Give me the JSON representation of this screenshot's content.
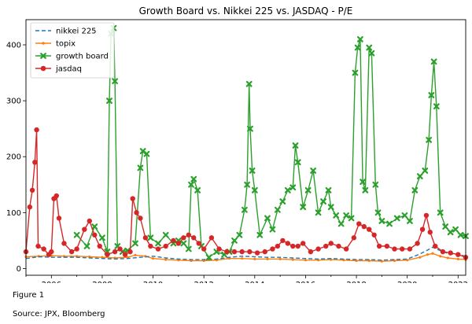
{
  "caption": {
    "figure_label": "Figure 1",
    "source": "Source: JPX, Bloomberg"
  },
  "chart_data": {
    "type": "line",
    "title": "Growth Board vs. Nikkei 225 vs. JASDAQ - P/E",
    "xlabel": "",
    "ylabel": "",
    "xlim": [
      2005.0,
      2022.3
    ],
    "ylim": [
      -12,
      445
    ],
    "x_ticks": [
      2006,
      2008,
      2010,
      2012,
      2014,
      2016,
      2018,
      2020,
      2022
    ],
    "y_ticks": [
      0,
      100,
      200,
      300,
      400
    ],
    "grid": false,
    "legend_position": "top-left",
    "series": [
      {
        "name": "nikkei 225",
        "color": "#1f77b4",
        "style": "dashed",
        "marker": "none",
        "points": [
          [
            2005.0,
            18
          ],
          [
            2005.5,
            21
          ],
          [
            2006.0,
            20
          ],
          [
            2006.5,
            20
          ],
          [
            2007.0,
            20
          ],
          [
            2007.5,
            19
          ],
          [
            2008.0,
            18
          ],
          [
            2008.5,
            17
          ],
          [
            2009.0,
            18
          ],
          [
            2009.5,
            20
          ],
          [
            2010.0,
            22
          ],
          [
            2010.5,
            19
          ],
          [
            2011.0,
            17
          ],
          [
            2011.5,
            16
          ],
          [
            2012.0,
            16
          ],
          [
            2012.5,
            17
          ],
          [
            2013.0,
            20
          ],
          [
            2013.5,
            22
          ],
          [
            2014.0,
            21
          ],
          [
            2014.5,
            20
          ],
          [
            2015.0,
            20
          ],
          [
            2015.5,
            19
          ],
          [
            2016.0,
            18
          ],
          [
            2016.5,
            17
          ],
          [
            2017.0,
            18
          ],
          [
            2017.5,
            17
          ],
          [
            2018.0,
            16
          ],
          [
            2018.5,
            16
          ],
          [
            2019.0,
            15
          ],
          [
            2019.5,
            16
          ],
          [
            2020.0,
            17
          ],
          [
            2020.5,
            26
          ],
          [
            2020.8,
            33
          ],
          [
            2021.0,
            38
          ],
          [
            2021.3,
            32
          ],
          [
            2021.6,
            27
          ],
          [
            2022.0,
            25
          ],
          [
            2022.3,
            22
          ]
        ]
      },
      {
        "name": "topix",
        "color": "#ff7f0e",
        "style": "solid",
        "marker": "dot",
        "points": [
          [
            2005.0,
            21
          ],
          [
            2005.5,
            22
          ],
          [
            2006.0,
            23
          ],
          [
            2006.5,
            22
          ],
          [
            2007.0,
            22
          ],
          [
            2007.5,
            21
          ],
          [
            2008.0,
            20
          ],
          [
            2008.5,
            19
          ],
          [
            2009.0,
            20
          ],
          [
            2009.3,
            24
          ],
          [
            2009.7,
            22
          ],
          [
            2010.0,
            18
          ],
          [
            2010.5,
            16
          ],
          [
            2011.0,
            15
          ],
          [
            2011.5,
            14
          ],
          [
            2012.0,
            14
          ],
          [
            2012.5,
            15
          ],
          [
            2013.0,
            18
          ],
          [
            2013.5,
            18
          ],
          [
            2014.0,
            17
          ],
          [
            2014.5,
            17
          ],
          [
            2015.0,
            17
          ],
          [
            2015.5,
            16
          ],
          [
            2016.0,
            15
          ],
          [
            2016.5,
            15
          ],
          [
            2017.0,
            16
          ],
          [
            2017.5,
            15
          ],
          [
            2018.0,
            14
          ],
          [
            2018.5,
            14
          ],
          [
            2019.0,
            13
          ],
          [
            2019.5,
            14
          ],
          [
            2020.0,
            15
          ],
          [
            2020.5,
            20
          ],
          [
            2020.8,
            25
          ],
          [
            2021.0,
            27
          ],
          [
            2021.3,
            22
          ],
          [
            2021.6,
            19
          ],
          [
            2022.0,
            17
          ],
          [
            2022.3,
            16
          ]
        ]
      },
      {
        "name": "growth board",
        "color": "#2ca02c",
        "style": "solid",
        "marker": "x",
        "points": [
          [
            2007.0,
            60
          ],
          [
            2007.4,
            40
          ],
          [
            2007.7,
            75
          ],
          [
            2008.0,
            55
          ],
          [
            2008.2,
            30
          ],
          [
            2008.28,
            300
          ],
          [
            2008.35,
            420
          ],
          [
            2008.45,
            430
          ],
          [
            2008.5,
            335
          ],
          [
            2008.6,
            40
          ],
          [
            2008.8,
            30
          ],
          [
            2009.0,
            32
          ],
          [
            2009.3,
            45
          ],
          [
            2009.5,
            180
          ],
          [
            2009.6,
            210
          ],
          [
            2009.75,
            205
          ],
          [
            2009.9,
            55
          ],
          [
            2010.2,
            45
          ],
          [
            2010.5,
            60
          ],
          [
            2010.8,
            45
          ],
          [
            2011.0,
            50
          ],
          [
            2011.2,
            45
          ],
          [
            2011.4,
            35
          ],
          [
            2011.5,
            150
          ],
          [
            2011.6,
            160
          ],
          [
            2011.75,
            140
          ],
          [
            2011.9,
            40
          ],
          [
            2012.2,
            20
          ],
          [
            2012.5,
            30
          ],
          [
            2012.8,
            25
          ],
          [
            2013.0,
            30
          ],
          [
            2013.2,
            50
          ],
          [
            2013.4,
            60
          ],
          [
            2013.6,
            105
          ],
          [
            2013.7,
            150
          ],
          [
            2013.78,
            330
          ],
          [
            2013.82,
            250
          ],
          [
            2013.9,
            175
          ],
          [
            2014.0,
            140
          ],
          [
            2014.2,
            60
          ],
          [
            2014.5,
            90
          ],
          [
            2014.7,
            70
          ],
          [
            2014.9,
            105
          ],
          [
            2015.1,
            120
          ],
          [
            2015.3,
            140
          ],
          [
            2015.5,
            145
          ],
          [
            2015.6,
            220
          ],
          [
            2015.7,
            190
          ],
          [
            2015.9,
            110
          ],
          [
            2016.1,
            140
          ],
          [
            2016.3,
            175
          ],
          [
            2016.5,
            100
          ],
          [
            2016.7,
            120
          ],
          [
            2016.9,
            140
          ],
          [
            2017.0,
            110
          ],
          [
            2017.2,
            95
          ],
          [
            2017.4,
            80
          ],
          [
            2017.6,
            95
          ],
          [
            2017.8,
            90
          ],
          [
            2017.95,
            350
          ],
          [
            2018.05,
            395
          ],
          [
            2018.15,
            410
          ],
          [
            2018.25,
            155
          ],
          [
            2018.35,
            140
          ],
          [
            2018.5,
            395
          ],
          [
            2018.6,
            385
          ],
          [
            2018.75,
            150
          ],
          [
            2018.85,
            100
          ],
          [
            2019.0,
            85
          ],
          [
            2019.3,
            80
          ],
          [
            2019.6,
            90
          ],
          [
            2019.9,
            95
          ],
          [
            2020.1,
            85
          ],
          [
            2020.3,
            140
          ],
          [
            2020.5,
            165
          ],
          [
            2020.7,
            175
          ],
          [
            2020.85,
            230
          ],
          [
            2020.95,
            310
          ],
          [
            2021.05,
            370
          ],
          [
            2021.15,
            290
          ],
          [
            2021.3,
            100
          ],
          [
            2021.5,
            75
          ],
          [
            2021.7,
            65
          ],
          [
            2021.9,
            70
          ],
          [
            2022.1,
            60
          ],
          [
            2022.3,
            58
          ]
        ]
      },
      {
        "name": "jasdaq",
        "color": "#d62728",
        "style": "solid",
        "marker": "circle",
        "points": [
          [
            2005.0,
            30
          ],
          [
            2005.15,
            110
          ],
          [
            2005.25,
            140
          ],
          [
            2005.35,
            190
          ],
          [
            2005.42,
            248
          ],
          [
            2005.48,
            40
          ],
          [
            2005.7,
            35
          ],
          [
            2005.9,
            25
          ],
          [
            2006.0,
            30
          ],
          [
            2006.1,
            125
          ],
          [
            2006.2,
            130
          ],
          [
            2006.3,
            90
          ],
          [
            2006.5,
            45
          ],
          [
            2006.8,
            30
          ],
          [
            2007.0,
            35
          ],
          [
            2007.3,
            70
          ],
          [
            2007.5,
            85
          ],
          [
            2007.7,
            60
          ],
          [
            2007.9,
            40
          ],
          [
            2008.2,
            25
          ],
          [
            2008.5,
            30
          ],
          [
            2008.7,
            35
          ],
          [
            2008.9,
            25
          ],
          [
            2009.1,
            30
          ],
          [
            2009.2,
            125
          ],
          [
            2009.35,
            100
          ],
          [
            2009.5,
            90
          ],
          [
            2009.7,
            55
          ],
          [
            2009.9,
            40
          ],
          [
            2010.2,
            35
          ],
          [
            2010.5,
            40
          ],
          [
            2010.8,
            50
          ],
          [
            2011.0,
            45
          ],
          [
            2011.2,
            55
          ],
          [
            2011.4,
            60
          ],
          [
            2011.6,
            55
          ],
          [
            2011.8,
            45
          ],
          [
            2012.0,
            35
          ],
          [
            2012.3,
            55
          ],
          [
            2012.6,
            35
          ],
          [
            2012.9,
            30
          ],
          [
            2013.2,
            30
          ],
          [
            2013.5,
            30
          ],
          [
            2013.8,
            30
          ],
          [
            2014.1,
            28
          ],
          [
            2014.4,
            30
          ],
          [
            2014.7,
            35
          ],
          [
            2014.9,
            40
          ],
          [
            2015.1,
            50
          ],
          [
            2015.3,
            45
          ],
          [
            2015.5,
            40
          ],
          [
            2015.7,
            40
          ],
          [
            2015.9,
            45
          ],
          [
            2016.2,
            30
          ],
          [
            2016.5,
            35
          ],
          [
            2016.8,
            40
          ],
          [
            2017.0,
            45
          ],
          [
            2017.3,
            40
          ],
          [
            2017.6,
            35
          ],
          [
            2017.9,
            55
          ],
          [
            2018.1,
            80
          ],
          [
            2018.3,
            75
          ],
          [
            2018.5,
            70
          ],
          [
            2018.7,
            60
          ],
          [
            2018.9,
            40
          ],
          [
            2019.2,
            40
          ],
          [
            2019.5,
            35
          ],
          [
            2019.8,
            35
          ],
          [
            2020.1,
            35
          ],
          [
            2020.4,
            45
          ],
          [
            2020.6,
            70
          ],
          [
            2020.75,
            95
          ],
          [
            2020.9,
            65
          ],
          [
            2021.1,
            40
          ],
          [
            2021.4,
            30
          ],
          [
            2021.7,
            28
          ],
          [
            2022.0,
            25
          ],
          [
            2022.3,
            20
          ]
        ]
      }
    ]
  }
}
